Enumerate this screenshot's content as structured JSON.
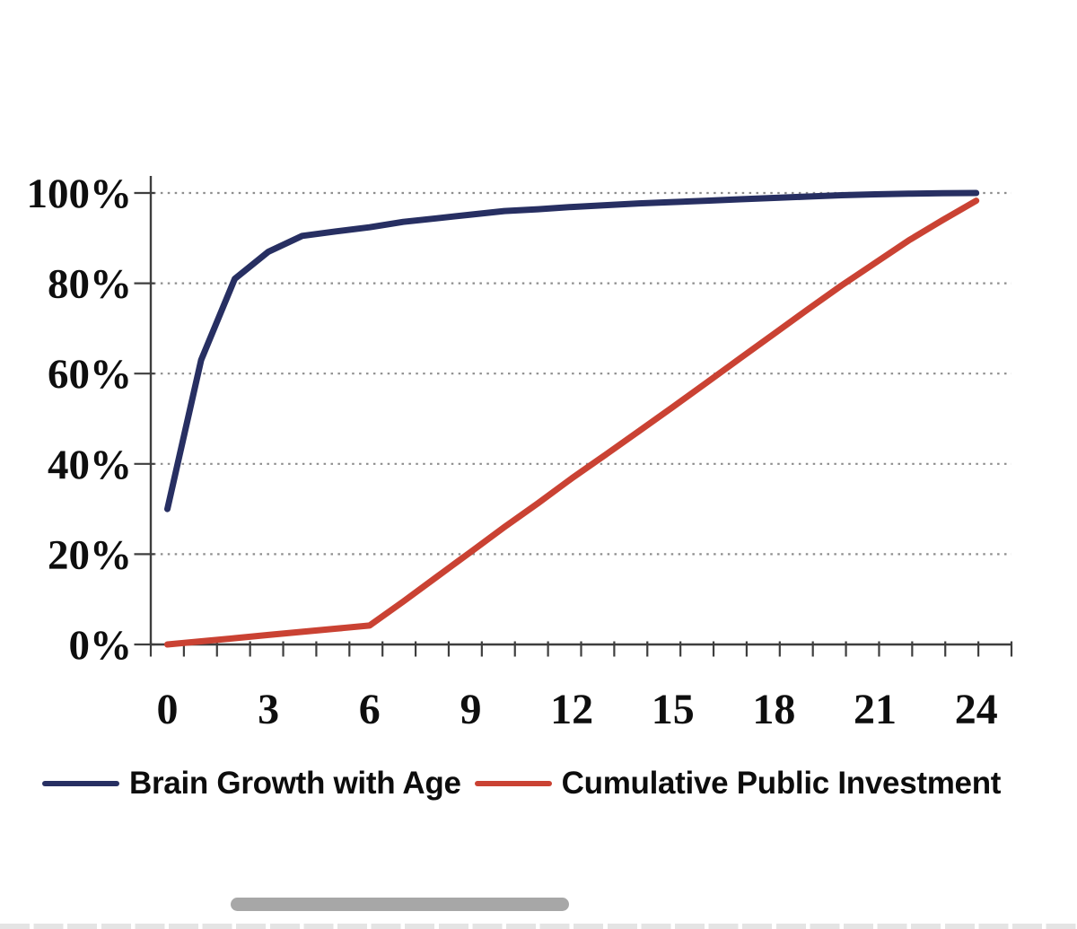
{
  "chart_data": {
    "type": "line",
    "title": "",
    "xlabel": "",
    "ylabel": "",
    "x": [
      0,
      1,
      2,
      3,
      4,
      5,
      6,
      7,
      8,
      9,
      10,
      11,
      12,
      13,
      14,
      15,
      16,
      17,
      18,
      19,
      20,
      21,
      22,
      23,
      24
    ],
    "series": [
      {
        "name": "Brain Growth with Age",
        "color": "#272f62",
        "values": [
          30,
          63,
          81,
          87,
          90.5,
          91.5,
          92.4,
          93.6,
          94.4,
          95.2,
          96,
          96.4,
          96.9,
          97.3,
          97.7,
          98,
          98.3,
          98.6,
          98.9,
          99.2,
          99.5,
          99.7,
          99.85,
          99.95,
          100
        ]
      },
      {
        "name": "Cumulative Public Investment",
        "color": "#ca4233",
        "values": [
          0,
          0.7,
          1.4,
          2.1,
          2.8,
          3.5,
          4.2,
          9.5,
          15,
          20.5,
          26,
          31.3,
          36.8,
          42,
          47.3,
          52.6,
          58,
          63.4,
          68.8,
          74.2,
          79.5,
          84.5,
          89.5,
          94,
          98.3
        ]
      }
    ],
    "xlim": [
      0,
      24
    ],
    "ylim": [
      0,
      100
    ],
    "x_tick_values": [
      0,
      3,
      6,
      9,
      12,
      15,
      18,
      21,
      24
    ],
    "x_tick_labels": [
      "0",
      "3",
      "6",
      "9",
      "12",
      "15",
      "18",
      "21",
      "24"
    ],
    "x_minor_tick_step": 1,
    "y_tick_values": [
      0,
      20,
      40,
      60,
      80,
      100
    ],
    "y_tick_labels": [
      "0%",
      "20%",
      "40%",
      "60%",
      "80%",
      "100%"
    ],
    "grid": "horizontal dotted",
    "legend_position": "bottom"
  },
  "legend": {
    "items": [
      {
        "label": "Brain Growth with Age",
        "color": "#272f62"
      },
      {
        "label": "Cumulative Public Investment",
        "color": "#ca4233"
      }
    ]
  },
  "colors": {
    "background": "#ffffff",
    "axis": "#3e3e3e",
    "gridline": "#8d8d8d",
    "tick_label": "#0e0e0e",
    "series_brain_growth": "#272f62",
    "series_public_investment": "#ca4233",
    "scroll_indicator": "#a7a7a7",
    "keyboard_tile": "#e4e4e4"
  }
}
